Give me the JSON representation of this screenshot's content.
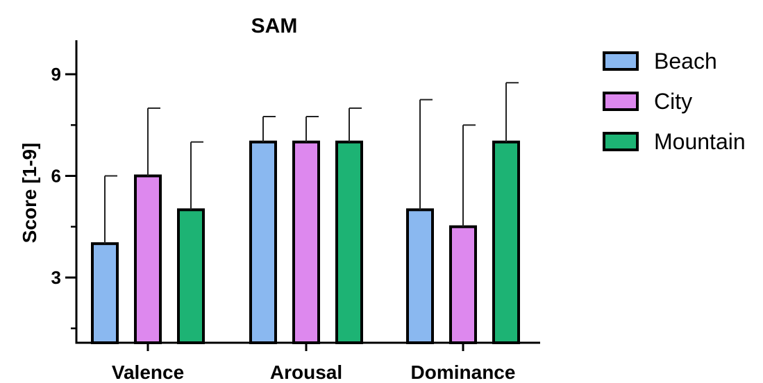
{
  "chart_data": {
    "type": "bar",
    "title": "SAM",
    "ylabel": "Score [1-9]",
    "xlabel": "",
    "ylim": [
      1,
      10
    ],
    "yticks": [
      3,
      6,
      9
    ],
    "grid": false,
    "legend_position": "right",
    "categories": [
      "Valence",
      "Arousal",
      "Dominance"
    ],
    "series": [
      {
        "name": "Beach",
        "color": "#8ab8f0",
        "values": [
          4,
          7,
          5
        ],
        "errors": [
          2,
          0.75,
          3.25
        ]
      },
      {
        "name": "City",
        "color": "#dd88ee",
        "values": [
          6,
          7,
          4.5
        ],
        "errors": [
          2,
          0.75,
          3
        ]
      },
      {
        "name": "Mountain",
        "color": "#1db374",
        "values": [
          5,
          7,
          7
        ],
        "errors": [
          2,
          1,
          1.75
        ]
      }
    ]
  }
}
